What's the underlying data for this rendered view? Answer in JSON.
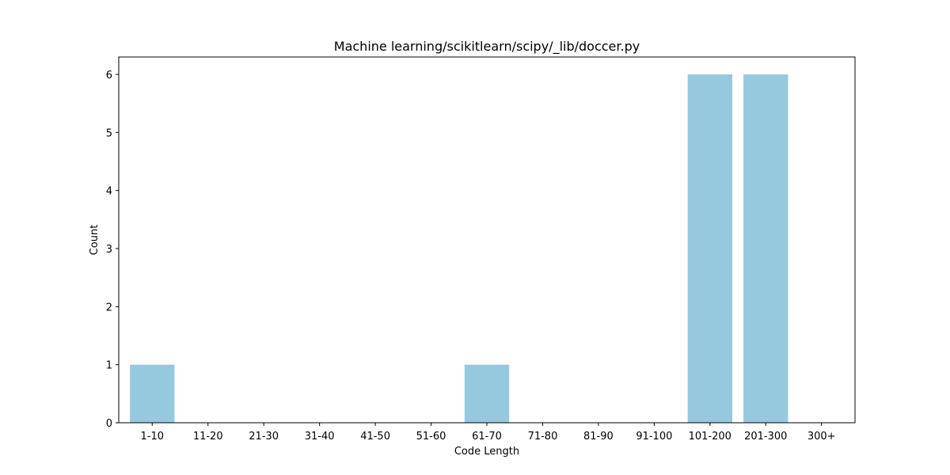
{
  "chart_data": {
    "type": "bar",
    "title": "Machine learning/scikitlearn/scipy/_lib/doccer.py",
    "xlabel": "Code Length",
    "ylabel": "Count",
    "categories": [
      "1-10",
      "11-20",
      "21-30",
      "31-40",
      "41-50",
      "51-60",
      "61-70",
      "71-80",
      "81-90",
      "91-100",
      "101-200",
      "201-300",
      "300+"
    ],
    "values": [
      1,
      0,
      0,
      0,
      0,
      0,
      1,
      0,
      0,
      0,
      6,
      6,
      0
    ],
    "ylim": [
      0,
      6.3
    ],
    "yticks": [
      0,
      1,
      2,
      3,
      4,
      5,
      6
    ],
    "bar_color": "#96c9de",
    "grid": false,
    "legend": "none"
  }
}
